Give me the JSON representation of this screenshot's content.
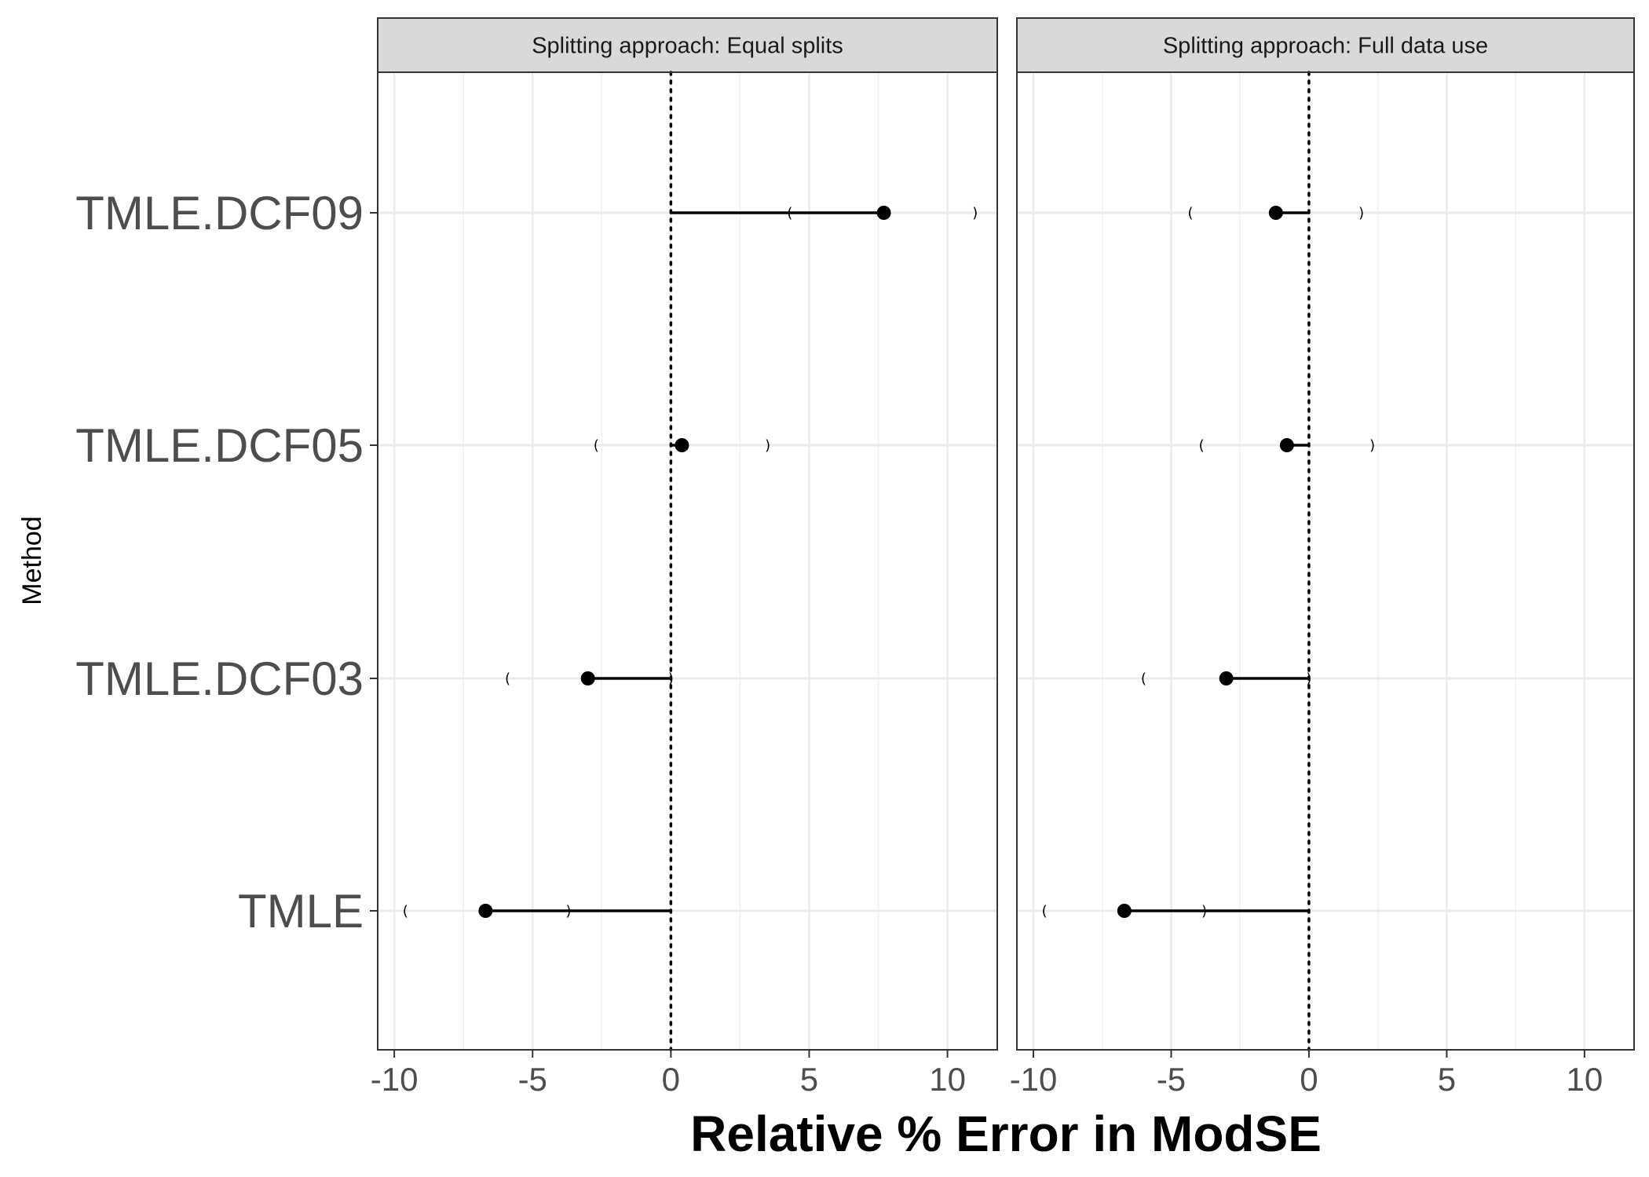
{
  "chart_data": {
    "type": "dot-interval",
    "xlabel": "Relative % Error in ModSE",
    "ylabel": "Method",
    "xlim": [
      -10.6,
      11.8
    ],
    "x_ticks": [
      -10,
      -5,
      0,
      5,
      10
    ],
    "x_tick_labels": [
      "-10",
      "-5",
      "0",
      "5",
      "10"
    ],
    "categories": [
      "TMLE",
      "TMLE.DCF03",
      "TMLE.DCF05",
      "TMLE.DCF09"
    ],
    "reference_line": 0,
    "grid": true,
    "panels": [
      {
        "strip": "Splitting approach: Equal splits",
        "points": [
          {
            "method": "TMLE",
            "value": -6.7,
            "lower": -9.6,
            "upper": -3.7
          },
          {
            "method": "TMLE.DCF03",
            "value": -3.0,
            "lower": -5.9,
            "upper": 0.0
          },
          {
            "method": "TMLE.DCF05",
            "value": 0.4,
            "lower": -2.7,
            "upper": 3.5
          },
          {
            "method": "TMLE.DCF09",
            "value": 7.7,
            "lower": 4.3,
            "upper": 11.0
          }
        ]
      },
      {
        "strip": "Splitting approach: Full data use",
        "points": [
          {
            "method": "TMLE",
            "value": -6.7,
            "lower": -9.6,
            "upper": -3.8
          },
          {
            "method": "TMLE.DCF03",
            "value": -3.0,
            "lower": -6.0,
            "upper": 0.0
          },
          {
            "method": "TMLE.DCF05",
            "value": -0.8,
            "lower": -3.9,
            "upper": 2.3
          },
          {
            "method": "TMLE.DCF09",
            "value": -1.2,
            "lower": -4.3,
            "upper": 1.9
          }
        ]
      }
    ]
  }
}
